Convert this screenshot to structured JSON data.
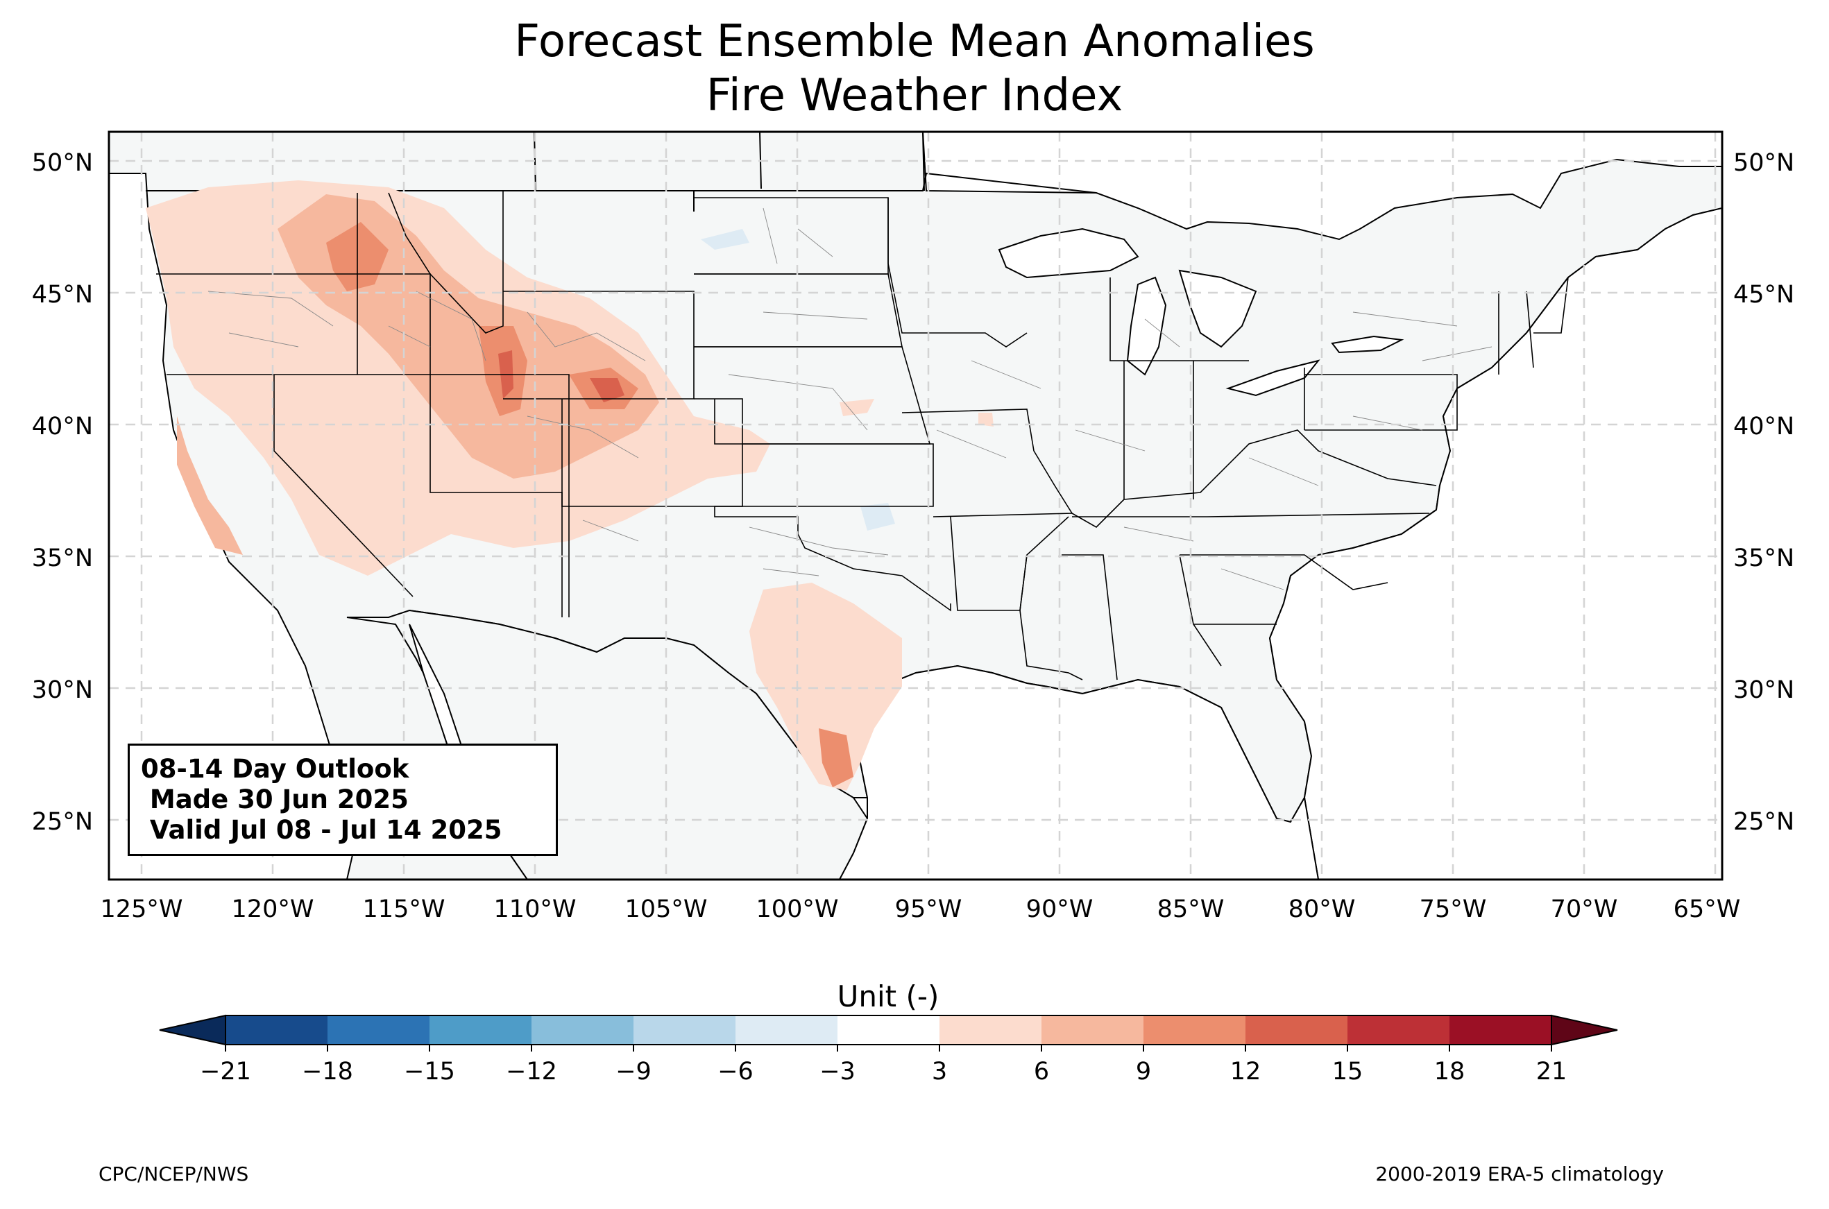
{
  "title": "Forecast Ensemble Mean Anomalies",
  "subtitle": "Fire Weather Index",
  "info_box": {
    "line1": "08-14 Day Outlook",
    "line2": " Made 30 Jun 2025",
    "line3": " Valid Jul 08 - Jul 14 2025"
  },
  "lat_labels": [
    "50°N",
    "45°N",
    "40°N",
    "35°N",
    "30°N",
    "25°N"
  ],
  "lat_values": [
    50,
    45,
    40,
    35,
    30,
    25
  ],
  "lon_labels": [
    "125°W",
    "120°W",
    "115°W",
    "110°W",
    "105°W",
    "100°W",
    "95°W",
    "90°W",
    "85°W",
    "80°W",
    "75°W",
    "70°W",
    "65°W"
  ],
  "lon_values": [
    -125,
    -120,
    -115,
    -110,
    -105,
    -100,
    -95,
    -90,
    -85,
    -80,
    -75,
    -70,
    -65
  ],
  "colorbar": {
    "title": "Unit (-)",
    "ticks": [
      "−21",
      "−18",
      "−15",
      "−12",
      "−9",
      "−6",
      "−3",
      "3",
      "6",
      "9",
      "12",
      "15",
      "18",
      "21"
    ],
    "colors": [
      "#174b8c",
      "#2c73b4",
      "#4e9cc8",
      "#88bedb",
      "#b9d7ea",
      "#deebf4",
      "#ffffff",
      "#fcdcce",
      "#f6b89e",
      "#ec8e6e",
      "#d9614d",
      "#bd3036",
      "#9b1025"
    ],
    "under_color": "#0a2a5a",
    "over_color": "#5f0517"
  },
  "credits": {
    "left": "CPC/NCEP/NWS",
    "right": "2000-2019 ERA-5 climatology"
  }
}
